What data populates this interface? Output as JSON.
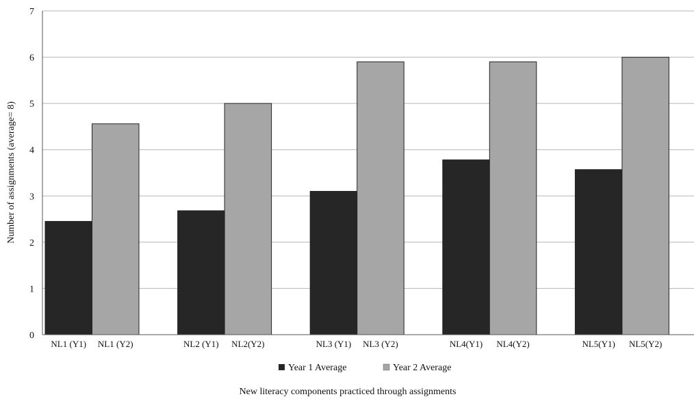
{
  "chart_data": {
    "type": "bar",
    "title": "",
    "xlabel": "New literacy components practiced through assignments",
    "ylabel": "Number of assignments (average= 8)",
    "ylim": [
      0,
      7
    ],
    "yticks": [
      "0",
      "1",
      "2",
      "3",
      "4",
      "5",
      "6",
      "7"
    ],
    "grid": true,
    "legend_position": "bottom",
    "categories": [
      "NL1",
      "NL2",
      "NL3",
      "NL4",
      "NL5"
    ],
    "series": [
      {
        "name": "Year 1 Average",
        "color": "#262626",
        "values": [
          2.45,
          2.68,
          3.1,
          3.78,
          3.57
        ],
        "tick_labels": [
          "NL1 (Y1)",
          "NL2 (Y1)",
          "NL3 (Y1)",
          "NL4(Y1)",
          "NL5(Y1)"
        ]
      },
      {
        "name": "Year 2 Average",
        "color": "#a6a6a6",
        "values": [
          4.56,
          5.0,
          5.9,
          5.9,
          6.0
        ],
        "tick_labels": [
          "NL1 (Y2)",
          "NL2(Y2)",
          "NL3 (Y2)",
          "NL4(Y2)",
          "NL5(Y2)"
        ]
      }
    ]
  }
}
